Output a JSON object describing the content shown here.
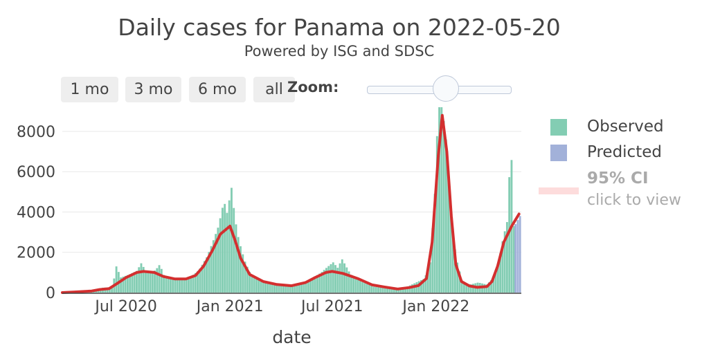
{
  "header": {
    "title": "Daily cases for Panama on 2022-05-20",
    "subtitle": "Powered by ISG and SDSC"
  },
  "controls": {
    "range_buttons": [
      "1 mo",
      "3 mo",
      "6 mo",
      "all"
    ],
    "zoom_label": "Zoom:",
    "zoom_level": 0.55
  },
  "legend": {
    "observed": "Observed",
    "predicted": "Predicted",
    "ci_title": "95% CI",
    "ci_hint": "click to view"
  },
  "colors": {
    "observed": "#83cdb3",
    "predicted": "#a2b1d9",
    "trend": "#d32f2f",
    "ci": "#fddcdc"
  },
  "chart_data": {
    "type": "bar",
    "title": "Daily cases for Panama on 2022-05-20",
    "subtitle": "Powered by ISG and SDSC",
    "xlabel": "date",
    "ylabel": "",
    "xlim": [
      "2020-03-10",
      "2022-06-01"
    ],
    "ylim": [
      0,
      9200
    ],
    "yticks": [
      0,
      2000,
      4000,
      6000,
      8000
    ],
    "xticks": [
      {
        "date": "2020-07-01",
        "label": "Jul 2020"
      },
      {
        "date": "2021-01-01",
        "label": "Jan 2021"
      },
      {
        "date": "2021-07-01",
        "label": "Jul 2021"
      },
      {
        "date": "2022-01-01",
        "label": "Jan 2022"
      }
    ],
    "series": [
      {
        "name": "Observed",
        "points": [
          [
            "2020-03-20",
            40
          ],
          [
            "2020-04-05",
            60
          ],
          [
            "2020-04-20",
            80
          ],
          [
            "2020-05-05",
            150
          ],
          [
            "2020-05-20",
            250
          ],
          [
            "2020-06-05",
            250
          ],
          [
            "2020-06-12",
            1300
          ],
          [
            "2020-06-20",
            750
          ],
          [
            "2020-07-05",
            900
          ],
          [
            "2020-07-20",
            1100
          ],
          [
            "2020-07-25",
            1500
          ],
          [
            "2020-08-05",
            1000
          ],
          [
            "2020-08-20",
            1100
          ],
          [
            "2020-08-28",
            1400
          ],
          [
            "2020-09-05",
            800
          ],
          [
            "2020-09-20",
            700
          ],
          [
            "2020-10-05",
            700
          ],
          [
            "2020-10-20",
            750
          ],
          [
            "2020-11-05",
            1100
          ],
          [
            "2020-11-20",
            1800
          ],
          [
            "2020-12-01",
            2600
          ],
          [
            "2020-12-10",
            3300
          ],
          [
            "2020-12-20",
            4600
          ],
          [
            "2020-12-24",
            3800
          ],
          [
            "2021-01-02",
            5200
          ],
          [
            "2021-01-08",
            3700
          ],
          [
            "2021-01-15",
            2600
          ],
          [
            "2021-01-25",
            1600
          ],
          [
            "2021-02-05",
            900
          ],
          [
            "2021-02-20",
            650
          ],
          [
            "2021-03-10",
            500
          ],
          [
            "2021-03-25",
            400
          ],
          [
            "2021-04-10",
            380
          ],
          [
            "2021-04-25",
            380
          ],
          [
            "2021-05-10",
            450
          ],
          [
            "2021-05-25",
            700
          ],
          [
            "2021-06-10",
            1000
          ],
          [
            "2021-06-20",
            1250
          ],
          [
            "2021-07-01",
            1500
          ],
          [
            "2021-07-10",
            1200
          ],
          [
            "2021-07-16",
            1700
          ],
          [
            "2021-08-01",
            900
          ],
          [
            "2021-08-20",
            550
          ],
          [
            "2021-09-10",
            300
          ],
          [
            "2021-10-01",
            220
          ],
          [
            "2021-10-20",
            200
          ],
          [
            "2021-11-10",
            300
          ],
          [
            "2021-11-25",
            500
          ],
          [
            "2021-12-10",
            700
          ],
          [
            "2021-12-20",
            1500
          ],
          [
            "2021-12-28",
            4900
          ],
          [
            "2022-01-03",
            9200
          ],
          [
            "2022-01-10",
            9200
          ],
          [
            "2022-01-17",
            7600
          ],
          [
            "2022-01-24",
            4900
          ],
          [
            "2022-01-31",
            2500
          ],
          [
            "2022-02-05",
            1600
          ],
          [
            "2022-02-15",
            500
          ],
          [
            "2022-03-01",
            400
          ],
          [
            "2022-03-15",
            500
          ],
          [
            "2022-03-30",
            400
          ],
          [
            "2022-04-10",
            700
          ],
          [
            "2022-04-20",
            1500
          ],
          [
            "2022-04-28",
            2700
          ],
          [
            "2022-05-05",
            3500
          ],
          [
            "2022-05-12",
            7400
          ],
          [
            "2022-05-17",
            3300
          ]
        ]
      },
      {
        "name": "Predicted",
        "points": [
          [
            "2022-05-20",
            3400
          ],
          [
            "2022-05-24",
            3600
          ],
          [
            "2022-05-28",
            3800
          ]
        ]
      }
    ],
    "trend_line": [
      [
        "2020-03-10",
        0
      ],
      [
        "2020-04-01",
        30
      ],
      [
        "2020-05-01",
        80
      ],
      [
        "2020-05-15",
        150
      ],
      [
        "2020-06-01",
        200
      ],
      [
        "2020-06-15",
        450
      ],
      [
        "2020-07-01",
        750
      ],
      [
        "2020-07-20",
        1000
      ],
      [
        "2020-08-01",
        1050
      ],
      [
        "2020-08-20",
        1000
      ],
      [
        "2020-09-05",
        800
      ],
      [
        "2020-09-25",
        680
      ],
      [
        "2020-10-15",
        680
      ],
      [
        "2020-11-01",
        850
      ],
      [
        "2020-11-15",
        1300
      ],
      [
        "2020-12-01",
        2100
      ],
      [
        "2020-12-15",
        2900
      ],
      [
        "2021-01-01",
        3300
      ],
      [
        "2021-01-10",
        2600
      ],
      [
        "2021-01-20",
        1700
      ],
      [
        "2021-02-05",
        900
      ],
      [
        "2021-03-01",
        550
      ],
      [
        "2021-03-25",
        400
      ],
      [
        "2021-04-20",
        340
      ],
      [
        "2021-05-15",
        500
      ],
      [
        "2021-06-01",
        750
      ],
      [
        "2021-06-20",
        1000
      ],
      [
        "2021-07-01",
        1050
      ],
      [
        "2021-07-20",
        950
      ],
      [
        "2021-08-15",
        700
      ],
      [
        "2021-09-10",
        380
      ],
      [
        "2021-10-01",
        280
      ],
      [
        "2021-10-25",
        180
      ],
      [
        "2021-11-15",
        250
      ],
      [
        "2021-12-01",
        350
      ],
      [
        "2021-12-15",
        700
      ],
      [
        "2021-12-25",
        2500
      ],
      [
        "2022-01-05",
        6800
      ],
      [
        "2022-01-12",
        8800
      ],
      [
        "2022-01-20",
        7000
      ],
      [
        "2022-01-28",
        3800
      ],
      [
        "2022-02-05",
        1400
      ],
      [
        "2022-02-15",
        550
      ],
      [
        "2022-03-01",
        330
      ],
      [
        "2022-03-15",
        260
      ],
      [
        "2022-04-01",
        300
      ],
      [
        "2022-04-10",
        550
      ],
      [
        "2022-04-20",
        1300
      ],
      [
        "2022-05-01",
        2500
      ],
      [
        "2022-05-15",
        3300
      ],
      [
        "2022-05-28",
        3900
      ]
    ],
    "legend": [
      "Observed",
      "Predicted",
      "95% CI"
    ],
    "legend_position": "right",
    "grid": true
  }
}
